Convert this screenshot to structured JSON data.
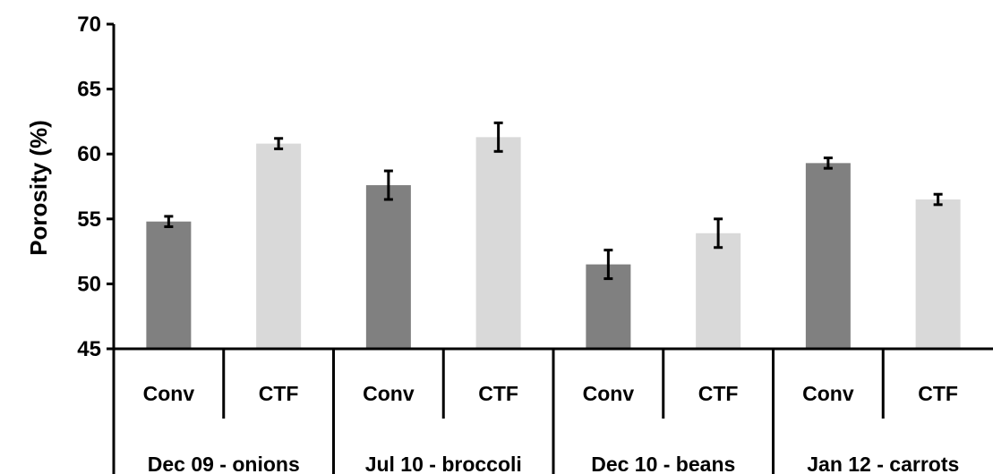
{
  "chart_data": {
    "type": "bar",
    "title": "",
    "ylabel": "Porosity (%)",
    "ylim": [
      45,
      70
    ],
    "yticks": [
      45,
      50,
      55,
      60,
      65,
      70
    ],
    "grid": false,
    "legend": "none",
    "groups": [
      "Dec 09 - onions",
      "Jul 10 - broccoli",
      "Dec 10 - beans",
      "Jan 12 - carrots"
    ],
    "categories": [
      "Conv",
      "CTF",
      "Conv",
      "CTF",
      "Conv",
      "CTF",
      "Conv",
      "CTF"
    ],
    "values": [
      54.8,
      60.8,
      57.6,
      61.3,
      51.5,
      53.9,
      59.3,
      56.5
    ],
    "errors": [
      0.4,
      0.4,
      1.1,
      1.1,
      1.1,
      1.1,
      0.4,
      0.4
    ],
    "colors": {
      "Conv": "#808080",
      "CTF": "#d9d9d9",
      "axis": "#000000"
    }
  }
}
